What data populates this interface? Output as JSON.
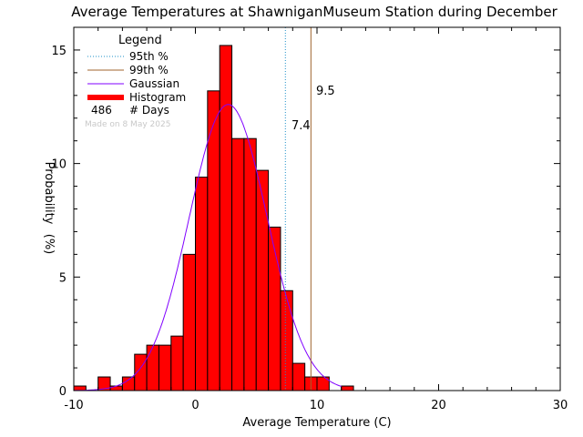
{
  "chart_data": {
    "type": "bar",
    "title": "Average Temperatures at ShawniganMuseum Station during December",
    "xlabel": "Average Temperature (C)",
    "ylabel": "Probability",
    "ylabel_unit": "(%)",
    "xlim": [
      -10,
      30
    ],
    "ylim": [
      0,
      16
    ],
    "x_ticks": [
      -10,
      0,
      10,
      20,
      30
    ],
    "y_ticks": [
      0,
      5,
      10,
      15
    ],
    "x_tick_labels": [
      "-10",
      "0",
      "10",
      "20",
      "30"
    ],
    "y_tick_labels": [
      "0",
      "5",
      "10",
      "15"
    ],
    "bin_width": 1,
    "histogram": [
      {
        "x0": -10,
        "value": 0.2
      },
      {
        "x0": -9,
        "value": 0.0
      },
      {
        "x0": -8,
        "value": 0.6
      },
      {
        "x0": -7,
        "value": 0.2
      },
      {
        "x0": -6,
        "value": 0.6
      },
      {
        "x0": -5,
        "value": 1.6
      },
      {
        "x0": -4,
        "value": 2.0
      },
      {
        "x0": -3,
        "value": 2.0
      },
      {
        "x0": -2,
        "value": 2.4
      },
      {
        "x0": -1,
        "value": 6.0
      },
      {
        "x0": 0,
        "value": 9.4
      },
      {
        "x0": 1,
        "value": 13.2
      },
      {
        "x0": 2,
        "value": 15.2
      },
      {
        "x0": 3,
        "value": 11.1
      },
      {
        "x0": 4,
        "value": 11.1
      },
      {
        "x0": 5,
        "value": 9.7
      },
      {
        "x0": 6,
        "value": 7.2
      },
      {
        "x0": 7,
        "value": 4.4
      },
      {
        "x0": 8,
        "value": 1.2
      },
      {
        "x0": 9,
        "value": 0.6
      },
      {
        "x0": 10,
        "value": 0.6
      },
      {
        "x0": 11,
        "value": 0.0
      },
      {
        "x0": 12,
        "value": 0.2
      }
    ],
    "gaussian": {
      "mean": 2.7,
      "sigma": 3.2,
      "peak": 12.6,
      "x_range": [
        -10,
        12
      ]
    },
    "percentile_95": {
      "value": 7.4,
      "label": "7.4"
    },
    "percentile_99": {
      "value": 9.5,
      "label": "9.5"
    },
    "legend": {
      "title": "Legend",
      "placement": "top-left",
      "items": [
        {
          "label": "95th %",
          "style": "dotted"
        },
        {
          "label": "99th %",
          "style": "solid"
        },
        {
          "label": "Gaussian",
          "style": "solid"
        },
        {
          "label": "Histogram",
          "style": "thick"
        }
      ],
      "days_count": "486",
      "days_label": "# Days",
      "credit": "Made on 8 May 2025"
    },
    "colors": {
      "histogram_fill": "#ff0000",
      "histogram_edge": "#000000",
      "gaussian": "#8000ff",
      "percentile_95": "#1e90c8",
      "percentile_99": "#a0642d",
      "axis": "#000000"
    },
    "grid": false
  }
}
